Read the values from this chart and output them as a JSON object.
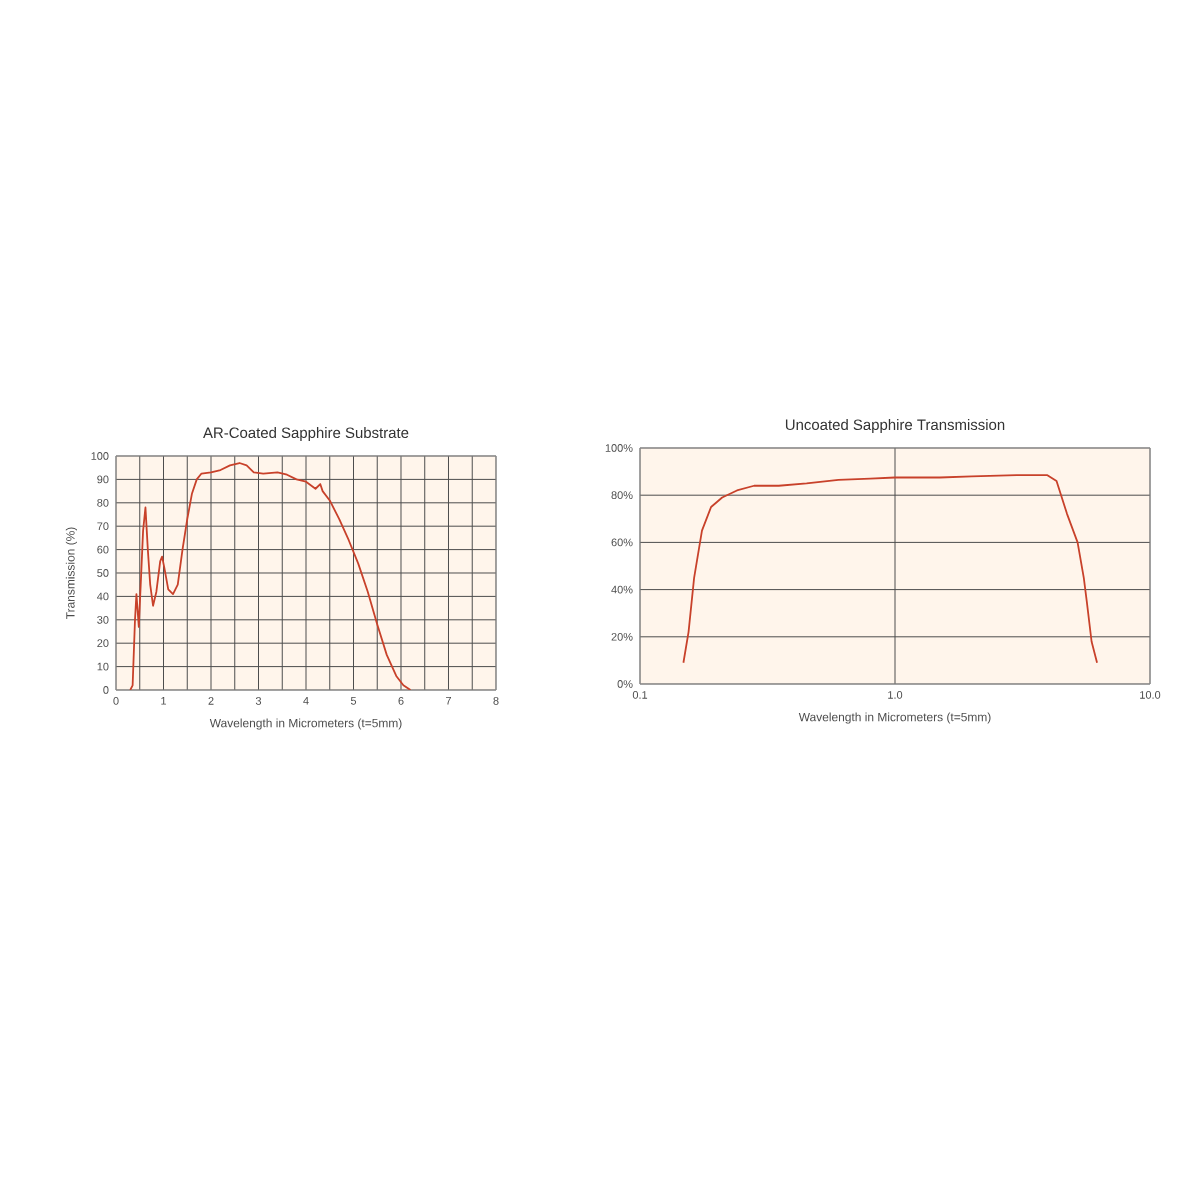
{
  "chart_data": [
    {
      "type": "line",
      "title": "AR-Coated Sapphire Substrate",
      "xlabel": "Wavelength in Micrometers (t=5mm)",
      "ylabel": "Transmission (%)",
      "series": [
        {
          "color": "#c8412a",
          "x": [
            0.3,
            0.35,
            0.4,
            0.43,
            0.48,
            0.52,
            0.57,
            0.62,
            0.67,
            0.72,
            0.78,
            0.85,
            0.93,
            0.97,
            1.02,
            1.1,
            1.2,
            1.3,
            1.4,
            1.5,
            1.6,
            1.7,
            1.8,
            2.0,
            2.2,
            2.4,
            2.6,
            2.75,
            2.9,
            3.1,
            3.4,
            3.6,
            3.8,
            4.0,
            4.2,
            4.3,
            4.35,
            4.5,
            4.7,
            4.9,
            5.1,
            5.3,
            5.5,
            5.7,
            5.9,
            6.05,
            6.2
          ],
          "values": [
            0,
            2,
            30,
            41,
            27,
            45,
            68,
            78,
            60,
            45,
            36,
            42,
            55,
            57,
            52,
            43,
            41,
            45,
            60,
            73,
            84,
            90,
            92.5,
            93,
            94,
            96,
            97,
            96,
            93,
            92.5,
            93,
            92,
            90,
            89,
            86,
            88,
            85,
            81,
            73,
            64,
            54,
            42,
            28,
            15,
            6,
            2,
            0
          ]
        }
      ],
      "xlim": [
        0,
        8
      ],
      "ylim": [
        0,
        100
      ],
      "xticks": [
        0,
        {
          "value": 0.5,
          "label": null
        },
        1,
        {
          "value": 1.5,
          "label": null
        },
        2,
        {
          "value": 2.5,
          "label": null
        },
        3,
        {
          "value": 3.5,
          "label": null
        },
        4,
        {
          "value": 4.5,
          "label": null
        },
        5,
        {
          "value": 5.5,
          "label": null
        },
        6,
        {
          "value": 6.5,
          "label": null
        },
        7,
        {
          "value": 7.5,
          "label": null
        },
        8
      ],
      "yticks": [
        0,
        10,
        20,
        30,
        40,
        50,
        60,
        70,
        80,
        90,
        100
      ],
      "grid": true,
      "line_style": "solid",
      "marker": "none"
    },
    {
      "type": "line",
      "title": "Uncoated Sapphire Transmission",
      "xlabel": "Wavelength in Micrometers (t=5mm)",
      "series": [
        {
          "color": "#c8412a",
          "x": [
            0.148,
            0.155,
            0.163,
            0.175,
            0.19,
            0.21,
            0.24,
            0.28,
            0.35,
            0.45,
            0.6,
            0.8,
            1.0,
            1.5,
            2.0,
            3.0,
            3.96,
            4.3,
            4.73,
            5.2,
            5.5,
            5.65,
            5.9,
            6.2
          ],
          "values": [
            9,
            22,
            45,
            65,
            75,
            79,
            82,
            84,
            84,
            85,
            86.5,
            87,
            87.5,
            87.5,
            88,
            88.5,
            88.5,
            86,
            72,
            60,
            45,
            35,
            18,
            9
          ]
        }
      ],
      "xlim": [
        0.1,
        10
      ],
      "ylim": [
        0,
        100
      ],
      "log": "x",
      "xticks": [
        {
          "value": 0.1,
          "label": "0.1"
        },
        {
          "value": 1,
          "label": "1.0"
        },
        {
          "value": 10,
          "label": "10.0"
        }
      ],
      "yticks": [
        {
          "value": 0,
          "label": "0%"
        },
        {
          "value": 20,
          "label": "20%"
        },
        {
          "value": 40,
          "label": "40%"
        },
        {
          "value": 60,
          "label": "60%"
        },
        {
          "value": 80,
          "label": "80%"
        },
        {
          "value": 100,
          "label": "100%"
        }
      ],
      "grid": true,
      "line_style": "solid",
      "marker": "none"
    }
  ]
}
